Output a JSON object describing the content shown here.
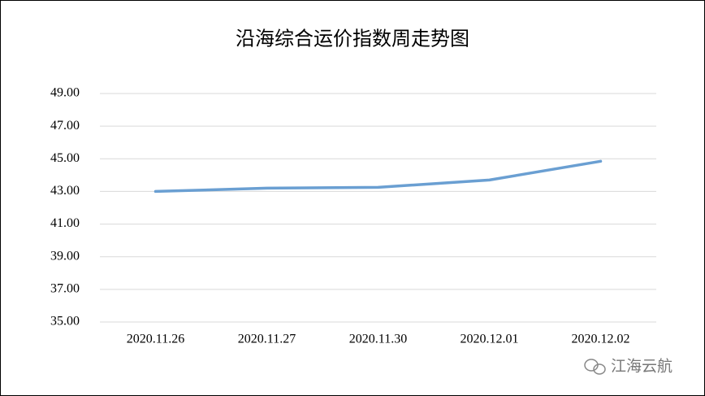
{
  "chart_data": {
    "type": "line",
    "title": "沿海综合运价指数周走势图",
    "categories": [
      "2020.11.26",
      "2020.11.27",
      "2020.11.30",
      "2020.12.01",
      "2020.12.02"
    ],
    "values": [
      43.0,
      43.2,
      43.25,
      43.7,
      44.85
    ],
    "color": "#6a9fd2",
    "ylim": [
      35,
      49
    ],
    "yticks": [
      {
        "value": 35,
        "label": "35.00"
      },
      {
        "value": 37,
        "label": "37.00"
      },
      {
        "value": 39,
        "label": "39.00"
      },
      {
        "value": 41,
        "label": "41.00"
      },
      {
        "value": 43,
        "label": "43.00"
      },
      {
        "value": 45,
        "label": "45.00"
      },
      {
        "value": 47,
        "label": "47.00"
      },
      {
        "value": 49,
        "label": "49.00"
      }
    ],
    "grid": true,
    "watermark": "江海云航"
  }
}
